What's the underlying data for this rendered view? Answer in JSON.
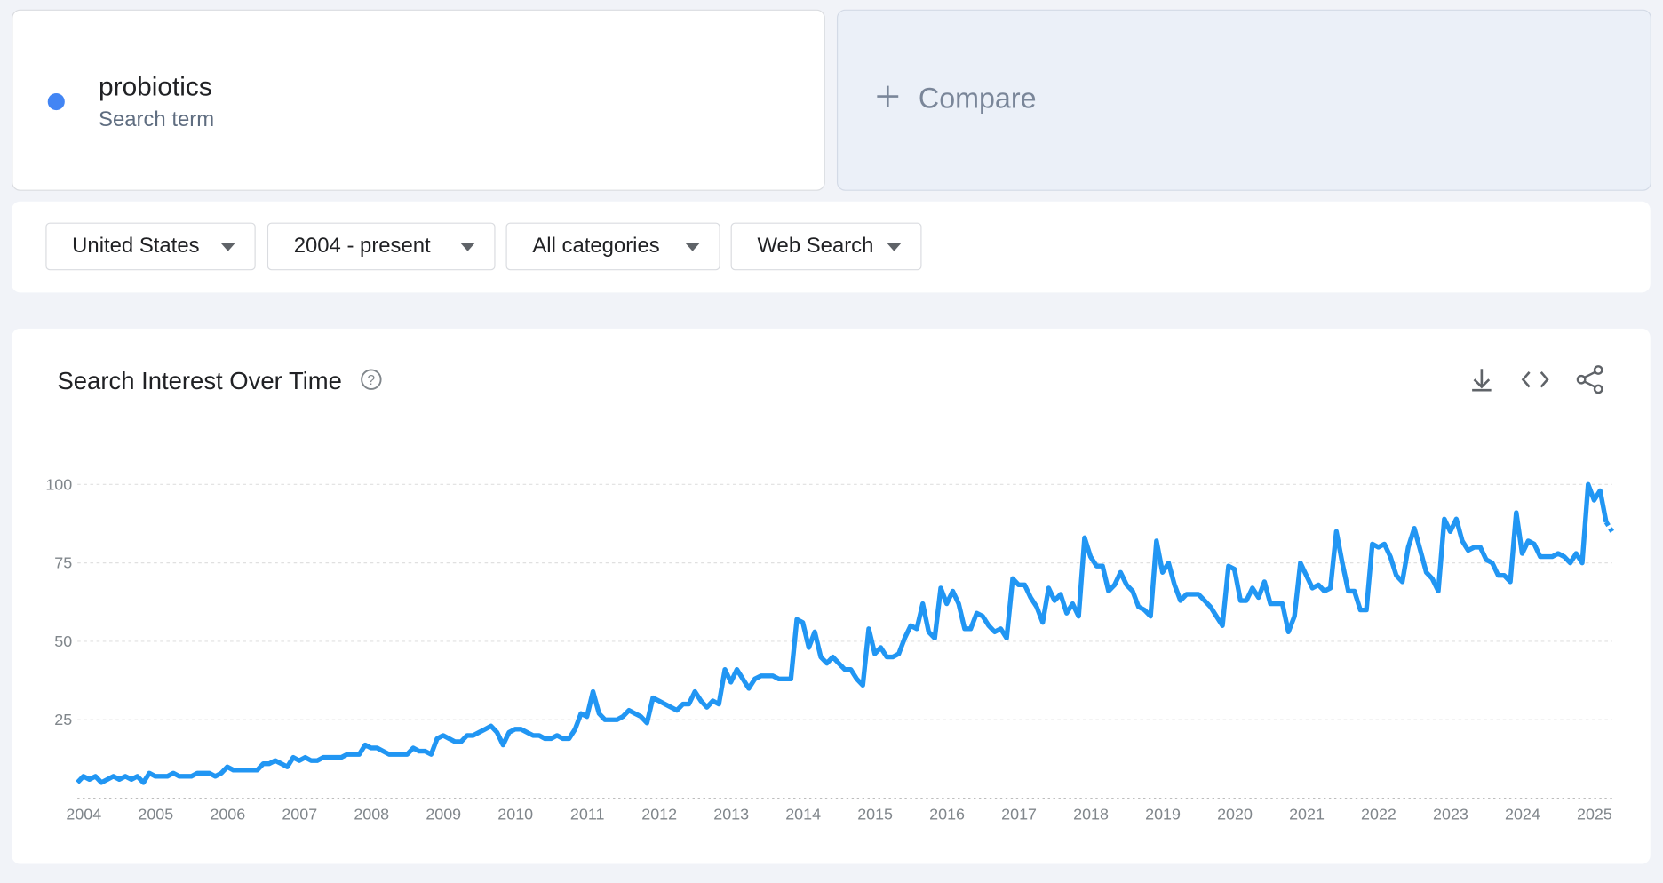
{
  "search_term": {
    "name": "probiotics",
    "type": "Search term"
  },
  "compare": "Compare",
  "filters": [
    "United States",
    "2004 - present",
    "All categories",
    "Web Search"
  ],
  "chart_data": {
    "type": "line",
    "title": "Search Interest Over Time",
    "series": [
      {
        "name": "probiotics",
        "color": "#2196f3",
        "x": [
          2004,
          2004.083,
          2004.167,
          2004.25,
          2004.333,
          2004.417,
          2004.5,
          2004.583,
          2004.667,
          2004.75,
          2004.833,
          2004.917,
          2005,
          2005.083,
          2005.167,
          2005.25,
          2005.333,
          2005.417,
          2005.5,
          2005.583,
          2005.667,
          2005.75,
          2005.833,
          2005.917,
          2006,
          2006.083,
          2006.167,
          2006.25,
          2006.333,
          2006.417,
          2006.5,
          2006.583,
          2006.667,
          2006.75,
          2006.833,
          2006.917,
          2007,
          2007.083,
          2007.167,
          2007.25,
          2007.333,
          2007.417,
          2007.5,
          2007.583,
          2007.667,
          2007.75,
          2007.833,
          2007.917,
          2008,
          2008.083,
          2008.167,
          2008.25,
          2008.333,
          2008.417,
          2008.5,
          2008.583,
          2008.667,
          2008.75,
          2008.833,
          2008.917,
          2009,
          2009.083,
          2009.167,
          2009.25,
          2009.333,
          2009.417,
          2009.5,
          2009.583,
          2009.667,
          2009.75,
          2009.833,
          2009.917,
          2010,
          2010.083,
          2010.167,
          2010.25,
          2010.333,
          2010.417,
          2010.5,
          2010.583,
          2010.667,
          2010.75,
          2010.833,
          2010.917,
          2011,
          2011.083,
          2011.167,
          2011.25,
          2011.333,
          2011.417,
          2011.5,
          2011.583,
          2011.667,
          2011.75,
          2011.833,
          2011.917,
          2012,
          2012.083,
          2012.167,
          2012.25,
          2012.333,
          2012.417,
          2012.5,
          2012.583,
          2012.667,
          2012.75,
          2012.833,
          2012.917,
          2013,
          2013.083,
          2013.167,
          2013.25,
          2013.333,
          2013.417,
          2013.5,
          2013.583,
          2013.667,
          2013.75,
          2013.833,
          2013.917,
          2014,
          2014.083,
          2014.167,
          2014.25,
          2014.333,
          2014.417,
          2014.5,
          2014.583,
          2014.667,
          2014.75,
          2014.833,
          2014.917,
          2015,
          2015.083,
          2015.167,
          2015.25,
          2015.333,
          2015.417,
          2015.5,
          2015.583,
          2015.667,
          2015.75,
          2015.833,
          2015.917,
          2016,
          2016.083,
          2016.167,
          2016.25,
          2016.333,
          2016.417,
          2016.5,
          2016.583,
          2016.667,
          2016.75,
          2016.833,
          2016.917,
          2017,
          2017.083,
          2017.167,
          2017.25,
          2017.333,
          2017.417,
          2017.5,
          2017.583,
          2017.667,
          2017.75,
          2017.833,
          2017.917,
          2018,
          2018.083,
          2018.167,
          2018.25,
          2018.333,
          2018.417,
          2018.5,
          2018.583,
          2018.667,
          2018.75,
          2018.833,
          2018.917,
          2019,
          2019.083,
          2019.167,
          2019.25,
          2019.333,
          2019.417,
          2019.5,
          2019.583,
          2019.667,
          2019.75,
          2019.833,
          2019.917,
          2020,
          2020.083,
          2020.167,
          2020.25,
          2020.333,
          2020.417,
          2020.5,
          2020.583,
          2020.667,
          2020.75,
          2020.833,
          2020.917,
          2021,
          2021.083,
          2021.167,
          2021.25,
          2021.333,
          2021.417,
          2021.5,
          2021.583,
          2021.667,
          2021.75,
          2021.833,
          2021.917,
          2022,
          2022.083,
          2022.167,
          2022.25,
          2022.333,
          2022.417,
          2022.5,
          2022.583,
          2022.667,
          2022.75,
          2022.833,
          2022.917,
          2023,
          2023.083,
          2023.167,
          2023.25,
          2023.333,
          2023.417,
          2023.5,
          2023.583,
          2023.667,
          2023.75,
          2023.833,
          2023.917,
          2024,
          2024.083,
          2024.167,
          2024.25,
          2024.333,
          2024.417,
          2024.5,
          2024.583,
          2024.667,
          2024.75,
          2024.833,
          2024.917,
          2025,
          2025.083,
          2025.167,
          2025.25,
          2025.333
        ],
        "values": [
          5,
          7,
          6,
          7,
          5,
          6,
          7,
          6,
          7,
          6,
          7,
          5,
          8,
          7,
          7,
          7,
          8,
          7,
          7,
          7,
          8,
          8,
          8,
          7,
          8,
          10,
          9,
          9,
          9,
          9,
          9,
          11,
          11,
          12,
          11,
          10,
          13,
          12,
          13,
          12,
          12,
          13,
          13,
          13,
          13,
          14,
          14,
          14,
          17,
          16,
          16,
          15,
          14,
          14,
          14,
          14,
          16,
          15,
          15,
          14,
          19,
          20,
          19,
          18,
          18,
          20,
          20,
          21,
          22,
          23,
          21,
          17,
          21,
          22,
          22,
          21,
          20,
          20,
          19,
          19,
          20,
          19,
          19,
          22,
          27,
          26,
          34,
          27,
          25,
          25,
          25,
          26,
          28,
          27,
          26,
          24,
          32,
          31,
          30,
          29,
          28,
          30,
          30,
          34,
          31,
          29,
          31,
          30,
          41,
          37,
          41,
          38,
          35,
          38,
          39,
          39,
          39,
          38,
          38,
          38,
          57,
          56,
          48,
          53,
          45,
          43,
          45,
          43,
          41,
          41,
          38,
          36,
          54,
          46,
          48,
          45,
          45,
          46,
          51,
          55,
          54,
          62,
          53,
          51,
          67,
          62,
          66,
          62,
          54,
          54,
          59,
          58,
          55,
          53,
          54,
          51,
          70,
          68,
          68,
          64,
          61,
          56,
          67,
          63,
          65,
          59,
          62,
          58,
          83,
          77,
          74,
          74,
          66,
          68,
          72,
          68,
          66,
          61,
          60,
          58,
          82,
          72,
          75,
          68,
          63,
          65,
          65,
          65,
          63,
          61,
          58,
          55,
          74,
          73,
          63,
          63,
          67,
          64,
          69,
          62,
          62,
          62,
          53,
          58,
          75,
          71,
          67,
          68,
          66,
          67,
          85,
          75,
          66,
          66,
          60,
          60,
          81,
          80,
          81,
          77,
          71,
          69,
          80,
          86,
          79,
          72,
          70,
          66,
          89,
          85,
          89,
          82,
          79,
          80,
          80,
          76,
          75,
          71,
          71,
          69,
          91,
          78,
          82,
          81,
          77,
          77,
          77,
          78,
          77,
          75,
          78,
          75,
          100,
          95,
          98,
          88,
          85
        ]
      }
    ],
    "xlim": [
      2004,
      2025.333
    ],
    "xticks": [
      2004,
      2005,
      2006,
      2007,
      2008,
      2009,
      2010,
      2011,
      2012,
      2013,
      2014,
      2015,
      2016,
      2017,
      2018,
      2019,
      2020,
      2021,
      2022,
      2023,
      2024,
      2025
    ],
    "ylim": [
      0,
      100
    ],
    "yticks": [
      25,
      50,
      75,
      100
    ],
    "grid": true
  }
}
